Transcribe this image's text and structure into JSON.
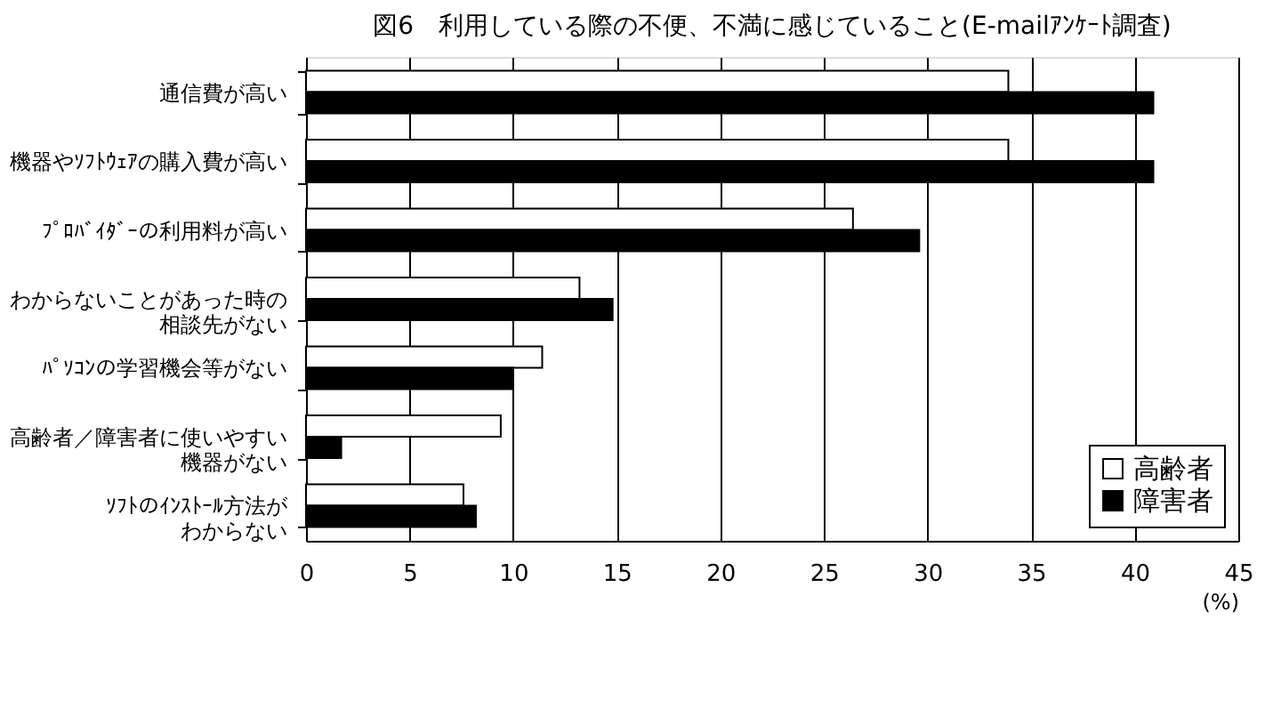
{
  "chart_data": {
    "type": "bar",
    "orientation": "horizontal",
    "title": "図6　利用している際の不便、不満に感じていること(E-mailｱﾝｹｰﾄ調査)",
    "xlabel": "(%)",
    "categories": [
      "通信費が高い",
      "機器やｿﾌﾄｳｪｱの購入費が高い",
      "ﾌﾟﾛﾊﾞｲﾀﾞｰの利用料が高い",
      "わからないことがあった時の相談先がない",
      "ﾊﾟｿｺﾝの学習機会等がない",
      "高齢者／障害者に使いやすい機器がない",
      "ｿﾌﾄのｲﾝｽﾄｰﾙ方法がわからない"
    ],
    "series": [
      {
        "name": "高齢者",
        "color": "#ffffff",
        "values": [
          33.9,
          33.9,
          26.4,
          13.2,
          11.4,
          9.4,
          7.6
        ]
      },
      {
        "name": "障害者",
        "color": "#000000",
        "values": [
          40.9,
          40.9,
          29.6,
          14.8,
          10.0,
          1.7,
          8.2
        ]
      }
    ],
    "xlim": [
      0,
      45
    ],
    "xticks": [
      0,
      5,
      10,
      15,
      20,
      25,
      30,
      35,
      40,
      45
    ],
    "grid": "x",
    "legend": "bottom right"
  }
}
